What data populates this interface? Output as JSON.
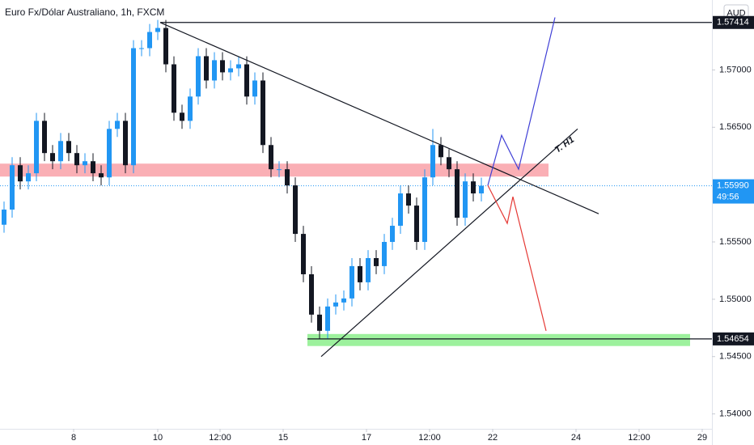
{
  "chart_data": {
    "type": "candlestick",
    "title": "Euro Fx/Dólar Australiano, 1h, FXCM",
    "currency_button": "AUD",
    "up_color": "#2196f3",
    "down_color": "#131722",
    "grid": false,
    "open": [
      1.5565,
      1.55782,
      1.56169,
      1.56028,
      1.56099,
      1.56556,
      1.56275,
      1.56204,
      1.5638,
      1.56275,
      1.56169,
      1.56204,
      1.56099,
      1.56063,
      1.56486,
      1.56556,
      1.56169,
      1.5719,
      1.5719,
      1.57331,
      1.57366,
      1.57049,
      1.56627,
      1.56556,
      1.56768,
      1.5712,
      1.56908,
      1.57085,
      1.56979,
      1.57014,
      1.57049,
      1.56768,
      1.56908,
      1.56345,
      1.56134,
      1.56134,
      1.55993,
      1.5557,
      1.55218,
      1.54866,
      1.54725,
      1.54937,
      1.54972,
      1.55007,
      1.55289,
      1.55148,
      1.55359,
      1.55289,
      1.555,
      1.55641,
      1.55923,
      1.55817,
      1.555,
      1.56063,
      1.56345,
      1.56239,
      1.56134,
      1.55711,
      1.56028,
      1.55923
    ],
    "high": [
      1.55852,
      1.56239,
      1.56239,
      1.56169,
      1.56626,
      1.56626,
      1.56345,
      1.5645,
      1.5645,
      1.56345,
      1.56274,
      1.56274,
      1.56169,
      1.56556,
      1.56626,
      1.56626,
      1.5726,
      1.5726,
      1.57401,
      1.57436,
      1.57436,
      1.57119,
      1.56697,
      1.56838,
      1.5719,
      1.5719,
      1.57155,
      1.57155,
      1.57084,
      1.57119,
      1.57119,
      1.56978,
      1.56978,
      1.56415,
      1.56204,
      1.56204,
      1.56063,
      1.5564,
      1.55288,
      1.54936,
      1.55007,
      1.55042,
      1.55077,
      1.55359,
      1.55359,
      1.55429,
      1.55429,
      1.5557,
      1.55711,
      1.55993,
      1.55993,
      1.55887,
      1.56133,
      1.56485,
      1.56415,
      1.56309,
      1.56204,
      1.56098,
      1.56098,
      1.5606
    ],
    "low": [
      1.5558,
      1.55712,
      1.55958,
      1.55958,
      1.56029,
      1.56205,
      1.56134,
      1.56134,
      1.56205,
      1.56099,
      1.56099,
      1.56029,
      1.55993,
      1.55993,
      1.56416,
      1.56099,
      1.56099,
      1.5712,
      1.5712,
      1.57261,
      1.56979,
      1.56557,
      1.56486,
      1.56486,
      1.56698,
      1.56838,
      1.56838,
      1.56909,
      1.56909,
      1.56944,
      1.56698,
      1.56698,
      1.56275,
      1.56064,
      1.56064,
      1.55923,
      1.555,
      1.55148,
      1.54796,
      1.54654,
      1.54655,
      1.54867,
      1.54902,
      1.54937,
      1.55078,
      1.55078,
      1.55219,
      1.55219,
      1.5543,
      1.55571,
      1.55747,
      1.5543,
      1.5543,
      1.55993,
      1.56169,
      1.56064,
      1.55641,
      1.55641,
      1.55853,
      1.55853
    ],
    "close": [
      1.55782,
      1.56169,
      1.56028,
      1.56099,
      1.56556,
      1.56275,
      1.56204,
      1.5638,
      1.56275,
      1.56169,
      1.56204,
      1.56099,
      1.56063,
      1.56486,
      1.56556,
      1.56169,
      1.5719,
      1.5719,
      1.57331,
      1.57366,
      1.57049,
      1.56627,
      1.56556,
      1.56768,
      1.5712,
      1.56908,
      1.57085,
      1.56979,
      1.57014,
      1.57049,
      1.56768,
      1.56908,
      1.56345,
      1.56134,
      1.56134,
      1.55993,
      1.5557,
      1.55218,
      1.54866,
      1.54725,
      1.54937,
      1.54972,
      1.55007,
      1.55289,
      1.55148,
      1.55359,
      1.55289,
      1.555,
      1.55641,
      1.55923,
      1.55817,
      1.555,
      1.56063,
      1.56345,
      1.56239,
      1.56134,
      1.55711,
      1.56028,
      1.55923,
      1.5599
    ],
    "xlim": [
      0,
      88
    ],
    "xticks": [
      {
        "value": 9.1,
        "label": "8"
      },
      {
        "value": 19.5,
        "label": "10"
      },
      {
        "value": 27.2,
        "label": "12:00"
      },
      {
        "value": 35.0,
        "label": "15"
      },
      {
        "value": 45.3,
        "label": "17"
      },
      {
        "value": 53.1,
        "label": "12:00"
      },
      {
        "value": 60.9,
        "label": "22"
      },
      {
        "value": 71.2,
        "label": "24"
      },
      {
        "value": 79.0,
        "label": "12:00"
      },
      {
        "value": 86.8,
        "label": "29"
      }
    ],
    "ylim": [
      1.5387,
      1.5761
    ],
    "yticks": [
      {
        "value": 1.54,
        "label": "1.54000"
      },
      {
        "value": 1.545,
        "label": "1.54500"
      },
      {
        "value": 1.55,
        "label": "1.55000"
      },
      {
        "value": 1.555,
        "label": "1.55500"
      },
      {
        "value": 1.565,
        "label": "1.56500"
      },
      {
        "value": 1.57,
        "label": "1.57000"
      }
    ],
    "drawings": [
      {
        "shape": "zone",
        "x": [
          0,
          67.8
        ],
        "y": [
          1.56183,
          1.5607
        ],
        "color": "rgba(242,54,69,0.4)"
      },
      {
        "shape": "zone",
        "x": [
          38,
          85.3
        ],
        "y": [
          1.54697,
          1.54592
        ],
        "color": "rgba(76,230,76,0.55)"
      },
      {
        "shape": "line",
        "x": [
          19.8,
          88
        ],
        "y": [
          1.57414,
          1.57414
        ],
        "color": "#131722"
      },
      {
        "shape": "line",
        "x": [
          38,
          88
        ],
        "y": [
          1.54654,
          1.54654
        ],
        "color": "#131722"
      },
      {
        "shape": "line",
        "x": [
          19.8,
          74
        ],
        "y": [
          1.57414,
          1.55746
        ],
        "color": "#131722"
      },
      {
        "shape": "line",
        "x": [
          39.7,
          71.4
        ],
        "y": [
          1.545,
          1.56486
        ],
        "color": "#131722"
      },
      {
        "shape": "line",
        "x": [
          60.3,
          62,
          64.1,
          68.6
        ],
        "y": [
          1.55993,
          1.5643,
          1.56134,
          1.57458
        ],
        "color": "#3f3fd6"
      },
      {
        "shape": "line",
        "x": [
          60.3,
          62.7,
          63.4,
          67.5
        ],
        "y": [
          1.55993,
          1.55662,
          1.55894,
          1.54725
        ],
        "color": "#e53935"
      }
    ],
    "annotation": {
      "text": "T. H1",
      "x": 69.8,
      "y": 1.56345
    },
    "last_price_line": {
      "value": 1.5599,
      "color": "#2196f3"
    },
    "price_tags": [
      {
        "value": 1.57414,
        "label": "1.57414",
        "color": "#131722"
      },
      {
        "value": 1.5599,
        "label": "1.55990",
        "color": "#2196f3",
        "countdown": "49:56"
      },
      {
        "value": 1.54654,
        "label": "1.54654",
        "color": "#131722"
      }
    ]
  }
}
